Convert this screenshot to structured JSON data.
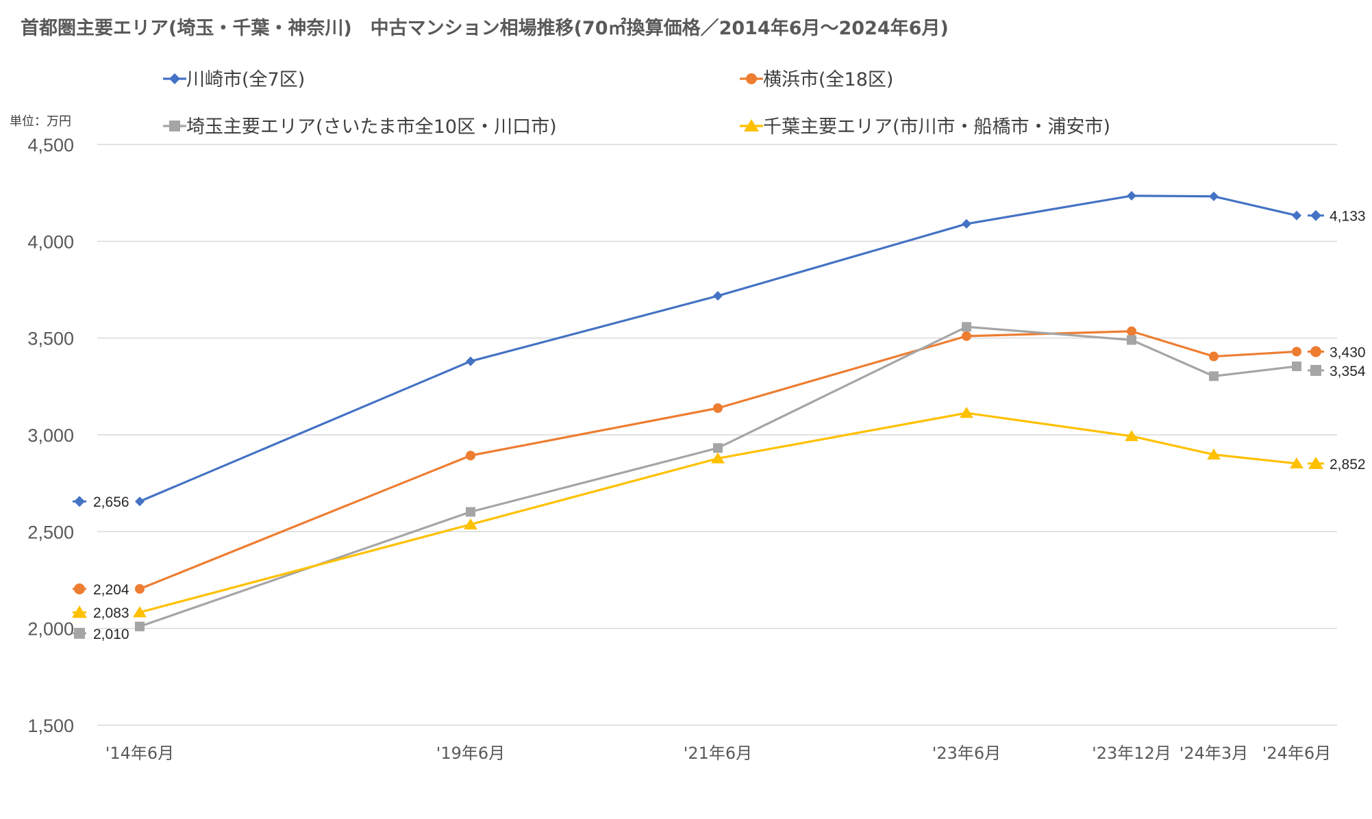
{
  "chart_data": {
    "type": "line",
    "title": "首都圏主要エリア(埼玉・千葉・神奈川)　中古マンション相場推移(70㎡換算価格／2014年6月～2024年6月)",
    "unit_label": "単位：万円",
    "categories": [
      "'14年6月",
      "'19年6月",
      "'21年6月",
      "'23年6月",
      "'23年12月",
      "'24年3月",
      "'24年6月"
    ],
    "ylim": [
      1500,
      4500
    ],
    "yticks": [
      "1,500",
      "2,000",
      "2,500",
      "3,000",
      "3,500",
      "4,000",
      "4,500"
    ],
    "ytick_values": [
      1500,
      2000,
      2500,
      3000,
      3500,
      4000,
      4500
    ],
    "grid": true,
    "legend_position": "top",
    "series": [
      {
        "name": "川崎市(全7区)",
        "color": "#4472C4",
        "marker": "diamond",
        "values": [
          2656,
          3380,
          3718,
          4090,
          4235,
          4232,
          4133
        ],
        "start_label": "2,656",
        "end_label": "4,133"
      },
      {
        "name": "横浜市(全18区)",
        "color": "#ED7D31",
        "marker": "circle",
        "values": [
          2204,
          2893,
          3138,
          3510,
          3535,
          3405,
          3430
        ],
        "start_label": "2,204",
        "end_label": "3,430"
      },
      {
        "name": "埼玉主要エリア(さいたま市全10区・川口市)",
        "color": "#A5A5A5",
        "marker": "square",
        "values": [
          2010,
          2602,
          2932,
          3558,
          3490,
          3303,
          3354
        ],
        "start_label": "2,010",
        "end_label": "3,354"
      },
      {
        "name": "千葉主要エリア(市川市・船橋市・浦安市)",
        "color": "#FFC000",
        "marker": "triangle",
        "values": [
          2083,
          2537,
          2878,
          3113,
          2993,
          2898,
          2852
        ],
        "start_label": "2,083",
        "end_label": "2,852"
      }
    ]
  }
}
